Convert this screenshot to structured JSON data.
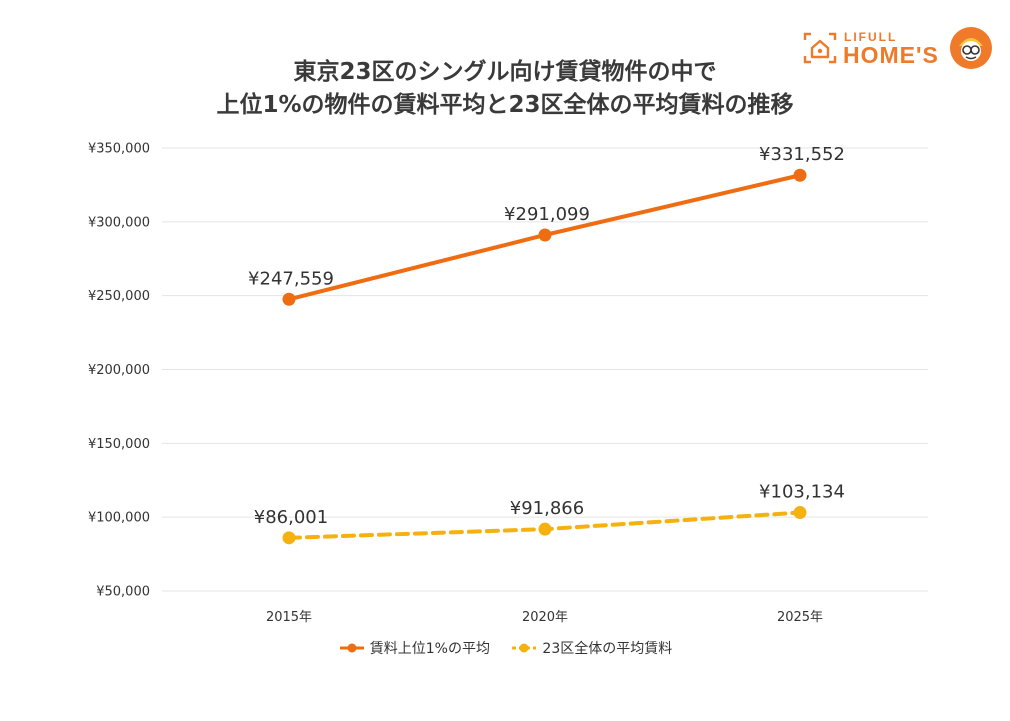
{
  "title_lines": [
    "東京23区のシングル向け賃貸物件の中で",
    "上位1%の物件の賃料平均と23区全体の平均賃料の推移"
  ],
  "logo": {
    "top": "LIFULL",
    "main": "HOME'S"
  },
  "colors": {
    "top1": "#ee6c12",
    "all": "#f5b10f",
    "grid": "#e5e5e5",
    "logo": "#ee7a2a"
  },
  "chart_data": {
    "type": "line",
    "categories": [
      "2015年",
      "2020年",
      "2025年"
    ],
    "ylim": [
      50000,
      350000
    ],
    "y_ticks": [
      50000,
      100000,
      150000,
      200000,
      250000,
      300000,
      350000
    ],
    "y_tick_labels": [
      "¥50,000",
      "¥100,000",
      "¥150,000",
      "¥200,000",
      "¥250,000",
      "¥300,000",
      "¥350,000"
    ],
    "grid": true,
    "legend_position": "bottom",
    "series": [
      {
        "name": "賃料上位1%の平均",
        "values": [
          247559,
          291099,
          331552
        ],
        "labels": [
          "¥247,559",
          "¥291,099",
          "¥331,552"
        ],
        "style": "solid"
      },
      {
        "name": "23区全体の平均賃料",
        "values": [
          86001,
          91866,
          103134
        ],
        "labels": [
          "¥86,001",
          "¥91,866",
          "¥103,134"
        ],
        "style": "dashed"
      }
    ]
  }
}
